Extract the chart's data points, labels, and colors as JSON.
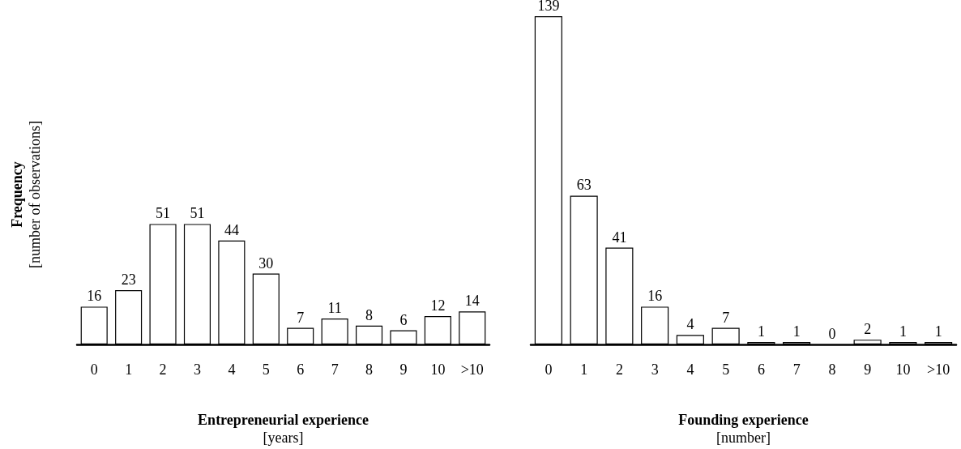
{
  "chart_data": [
    {
      "type": "bar",
      "data_labels": true,
      "ylabel": "Frequency\n[number of observations]",
      "xlabel": "Entrepreneurial experience\n[years]",
      "categories": [
        "0",
        "1",
        "2",
        "3",
        "4",
        "5",
        "6",
        "7",
        "8",
        "9",
        "10",
        ">10"
      ],
      "series": [
        {
          "color": "#ffffff",
          "values": [
            16,
            23,
            51,
            51,
            44,
            30,
            7,
            11,
            8,
            6,
            12,
            14
          ]
        }
      ]
    },
    {
      "type": "bar",
      "data_labels": true,
      "xlabel": "Founding experience\n[number]",
      "categories": [
        "0",
        "1",
        "2",
        "3",
        "4",
        "5",
        "6",
        "7",
        "8",
        "9",
        "10",
        ">10"
      ],
      "series": [
        {
          "color": "#ffffff",
          "values": [
            139,
            63,
            41,
            16,
            4,
            7,
            1,
            1,
            0,
            2,
            1,
            1
          ]
        }
      ]
    }
  ]
}
